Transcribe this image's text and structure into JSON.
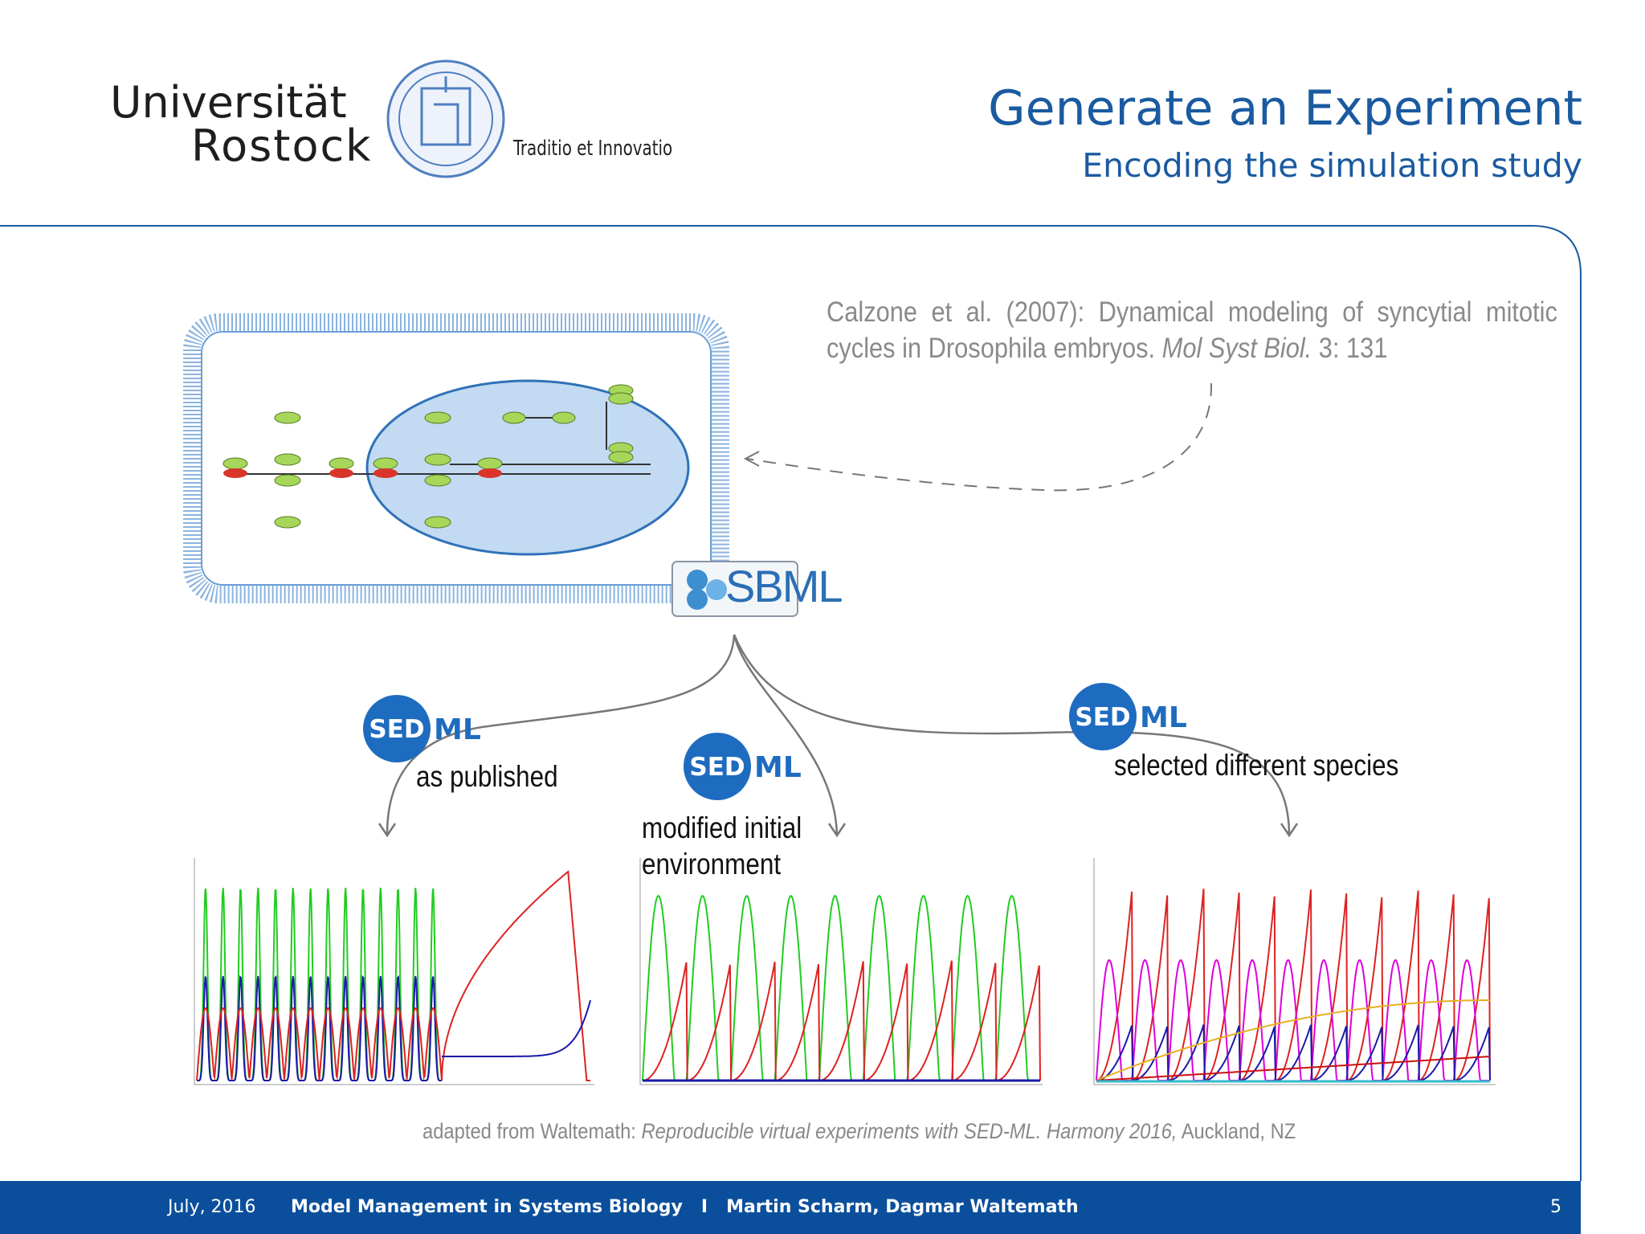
{
  "header": {
    "university": "Universität",
    "city": "Rostock",
    "motto": "Traditio et Innovatio",
    "title": "Generate an Experiment",
    "subtitle": "Encoding the simulation study"
  },
  "citation": {
    "text": "Calzone et al. (2007): Dynamical modeling of syncytial mitotic cycles in Drosophila embryos.",
    "journal": "Mol Syst Biol.",
    "volume": "3: 131"
  },
  "sbml": {
    "logo": "SBML"
  },
  "experiments": [
    {
      "logo_a": "SED",
      "logo_b": "ML",
      "label": "as published"
    },
    {
      "logo_a": "SED",
      "logo_b": "ML",
      "label": "modified initial environment"
    },
    {
      "logo_a": "SED",
      "logo_b": "ML",
      "label": "selected different species"
    }
  ],
  "credit": {
    "prefix": "adapted from Waltemath:",
    "title": "Reproducible virtual experiments with SED-ML. Harmony 2016,",
    "place": "Auckland, NZ"
  },
  "footer": {
    "date": "July, 2016",
    "title": "Model Management in Systems Biology",
    "separator": "I",
    "authors": "Martin Scharm, Dagmar Waltemath",
    "page": "5"
  }
}
